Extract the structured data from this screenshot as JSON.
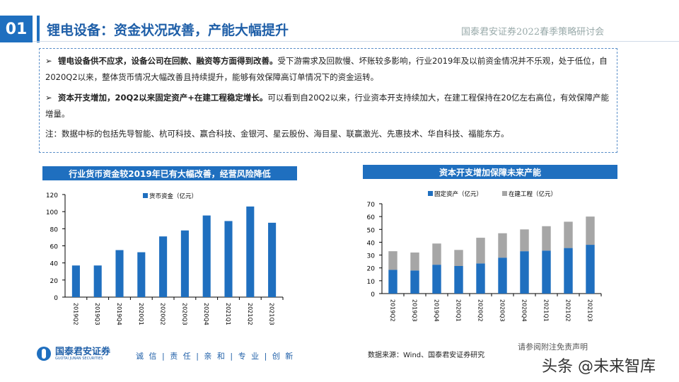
{
  "header": {
    "number": "01",
    "title": "锂电设备：资金状况改善，产能大幅提升",
    "conference": "国泰君安证券2022春季策略研讨会"
  },
  "summary": {
    "bullet1_bold": "锂电设备供不应求，设备公司在回款、融资等方面得到改善。",
    "bullet1_text": "受下游需求及回款慢、坏账较多影响，行业2019年及以前资金情况并不乐观，处于低位，自2020Q2以来，整体货币情况大幅改善且持续提升，能够有效保障高订单情况下的资金运转。",
    "bullet2_bold": "资本开支增加，20Q2以来固定资产+在建工程稳定增长。",
    "bullet2_text": "可以看到自20Q2以来，行业资本开支持续加大，在建工程保持在20亿左右高位，有效保障产能增量。",
    "note": "注：数据中标的包括先导智能、杭可科技、赢合科技、金银河、星云股份、海目星、联赢激光、先惠技术、华自科技、福能东方。"
  },
  "chart_data": [
    {
      "type": "bar",
      "title": "行业货币资金较2019年已有大幅改善，经营风险降低",
      "categories": [
        "2019Q2",
        "2019Q3",
        "2019Q4",
        "2020Q1",
        "2020Q2",
        "2020Q3",
        "2020Q4",
        "2021Q1",
        "2021Q2",
        "2021Q3"
      ],
      "series": [
        {
          "name": "货币资金（亿元）",
          "values": [
            37,
            37,
            55,
            52.5,
            71,
            78,
            95.5,
            89,
            106,
            87
          ],
          "color": "#1f6fbf"
        }
      ],
      "ylim": [
        0,
        120
      ],
      "yticks": [
        0,
        20,
        40,
        60,
        80,
        100,
        120
      ],
      "legend": "top"
    },
    {
      "type": "bar",
      "stacked": true,
      "title": "资本开支增加保障未来产能",
      "categories": [
        "2019Q2",
        "2019Q3",
        "2019Q4",
        "2020Q1",
        "2020Q2",
        "2020Q3",
        "2020Q4",
        "2021Q1",
        "2021Q2",
        "2021Q3"
      ],
      "series": [
        {
          "name": "固定资产（亿元）",
          "values": [
            18.5,
            18,
            22.5,
            21.5,
            23.5,
            28,
            33,
            33.5,
            35.5,
            38
          ],
          "color": "#1f6fbf"
        },
        {
          "name": "在建工程（亿元）",
          "values": [
            14.5,
            14,
            16.5,
            12.5,
            20,
            19,
            17,
            19,
            20.5,
            22
          ],
          "color": "#a6a6a6"
        }
      ],
      "ylim": [
        0,
        70
      ],
      "yticks": [
        0,
        10,
        20,
        30,
        40,
        50,
        60,
        70
      ],
      "legend": "top"
    }
  ],
  "footer": {
    "company": "国泰君安证券",
    "company_en": "GUOTAI JUNAN SECURITIES",
    "motto": "诚 信 | 责 任 | 亲 和 | 专 业 | 创 新",
    "source": "数据来源：Wind、国泰君安证券研究",
    "disclaimer": "请参阅附注免责声明",
    "watermark": "头条 @未来智库"
  }
}
